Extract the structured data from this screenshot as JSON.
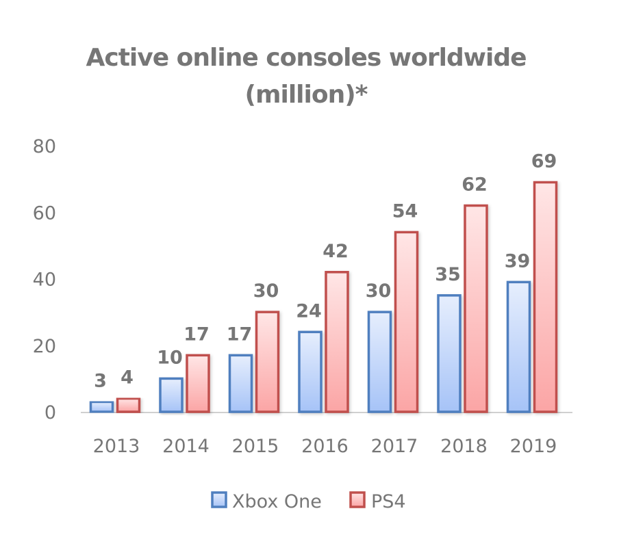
{
  "chart_data": {
    "type": "bar",
    "title": [
      "Active online consoles worldwide",
      "(million)*"
    ],
    "xlabel": "",
    "ylabel": "",
    "categories": [
      "2013",
      "2014",
      "2015",
      "2016",
      "2017",
      "2018",
      "2019"
    ],
    "series": [
      {
        "name": "Xbox One",
        "values": [
          3,
          10,
          17,
          24,
          30,
          35,
          39
        ],
        "color": "#4F7FBF",
        "fill_top": "#E6EEFD",
        "fill_bottom": "#A6C3F7"
      },
      {
        "name": "PS4",
        "values": [
          4,
          17,
          30,
          42,
          54,
          62,
          69
        ],
        "color": "#C0504D",
        "fill_top": "#FFE6E6",
        "fill_bottom": "#FBA5A5"
      }
    ],
    "ylim": [
      0,
      80
    ],
    "yticks": [
      "0",
      "20",
      "40",
      "60",
      "80"
    ],
    "grid": false,
    "data_labels": true,
    "legend": "bottom"
  }
}
